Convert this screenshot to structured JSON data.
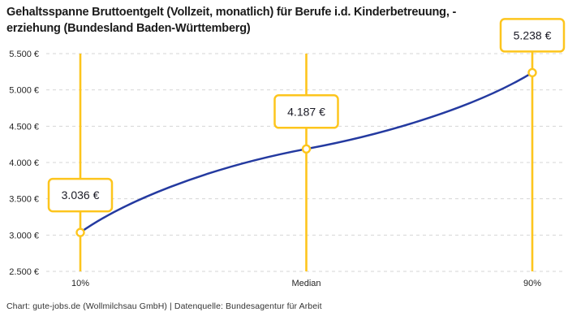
{
  "header": {
    "title_line1": "Gehaltsspanne Bruttoentgelt (Vollzeit, monatlich) für Berufe i.d. Kinderbetreuung, -",
    "title_line2": "erziehung (Bundesland Baden-Württemberg)"
  },
  "footer": {
    "text": "Chart: gute-jobs.de (Wollmilchsau GmbH) | Datenquelle: Bundesagentur für Arbeit"
  },
  "chart_data": {
    "type": "line",
    "title": "Gehaltsspanne Bruttoentgelt (Vollzeit, monatlich) für Berufe i.d. Kinderbetreuung, -erziehung (Bundesland Baden-Württemberg)",
    "categories": [
      "10%",
      "Median",
      "90%"
    ],
    "values": [
      3036,
      4187,
      5238
    ],
    "value_labels": [
      "3.036 €",
      "4.187 €",
      "5.238 €"
    ],
    "ylim": [
      2500,
      5500
    ],
    "y_ticks": [
      5500,
      5000,
      4500,
      4000,
      3500,
      3000,
      2500
    ],
    "y_tick_labels": [
      "5.500 €",
      "5.000 €",
      "4.500 €",
      "4.000 €",
      "3.500 €",
      "3.000 €",
      "2.500 €"
    ],
    "xlabel": "",
    "ylabel": "",
    "grid": "horizontal-dashed",
    "legend": "none",
    "source": "Chart: gute-jobs.de (Wollmilchsau GmbH) | Datenquelle: Bundesagentur für Arbeit",
    "colors": {
      "line": "#243aa0",
      "annotation": "#fdc51d",
      "marker_fill": "#ffffff",
      "grid": "#d6d6d6",
      "axis_text": "#262626",
      "label_text": "#1b1b26",
      "title_text": "#1a1a1a",
      "background": "#ffffff"
    }
  }
}
